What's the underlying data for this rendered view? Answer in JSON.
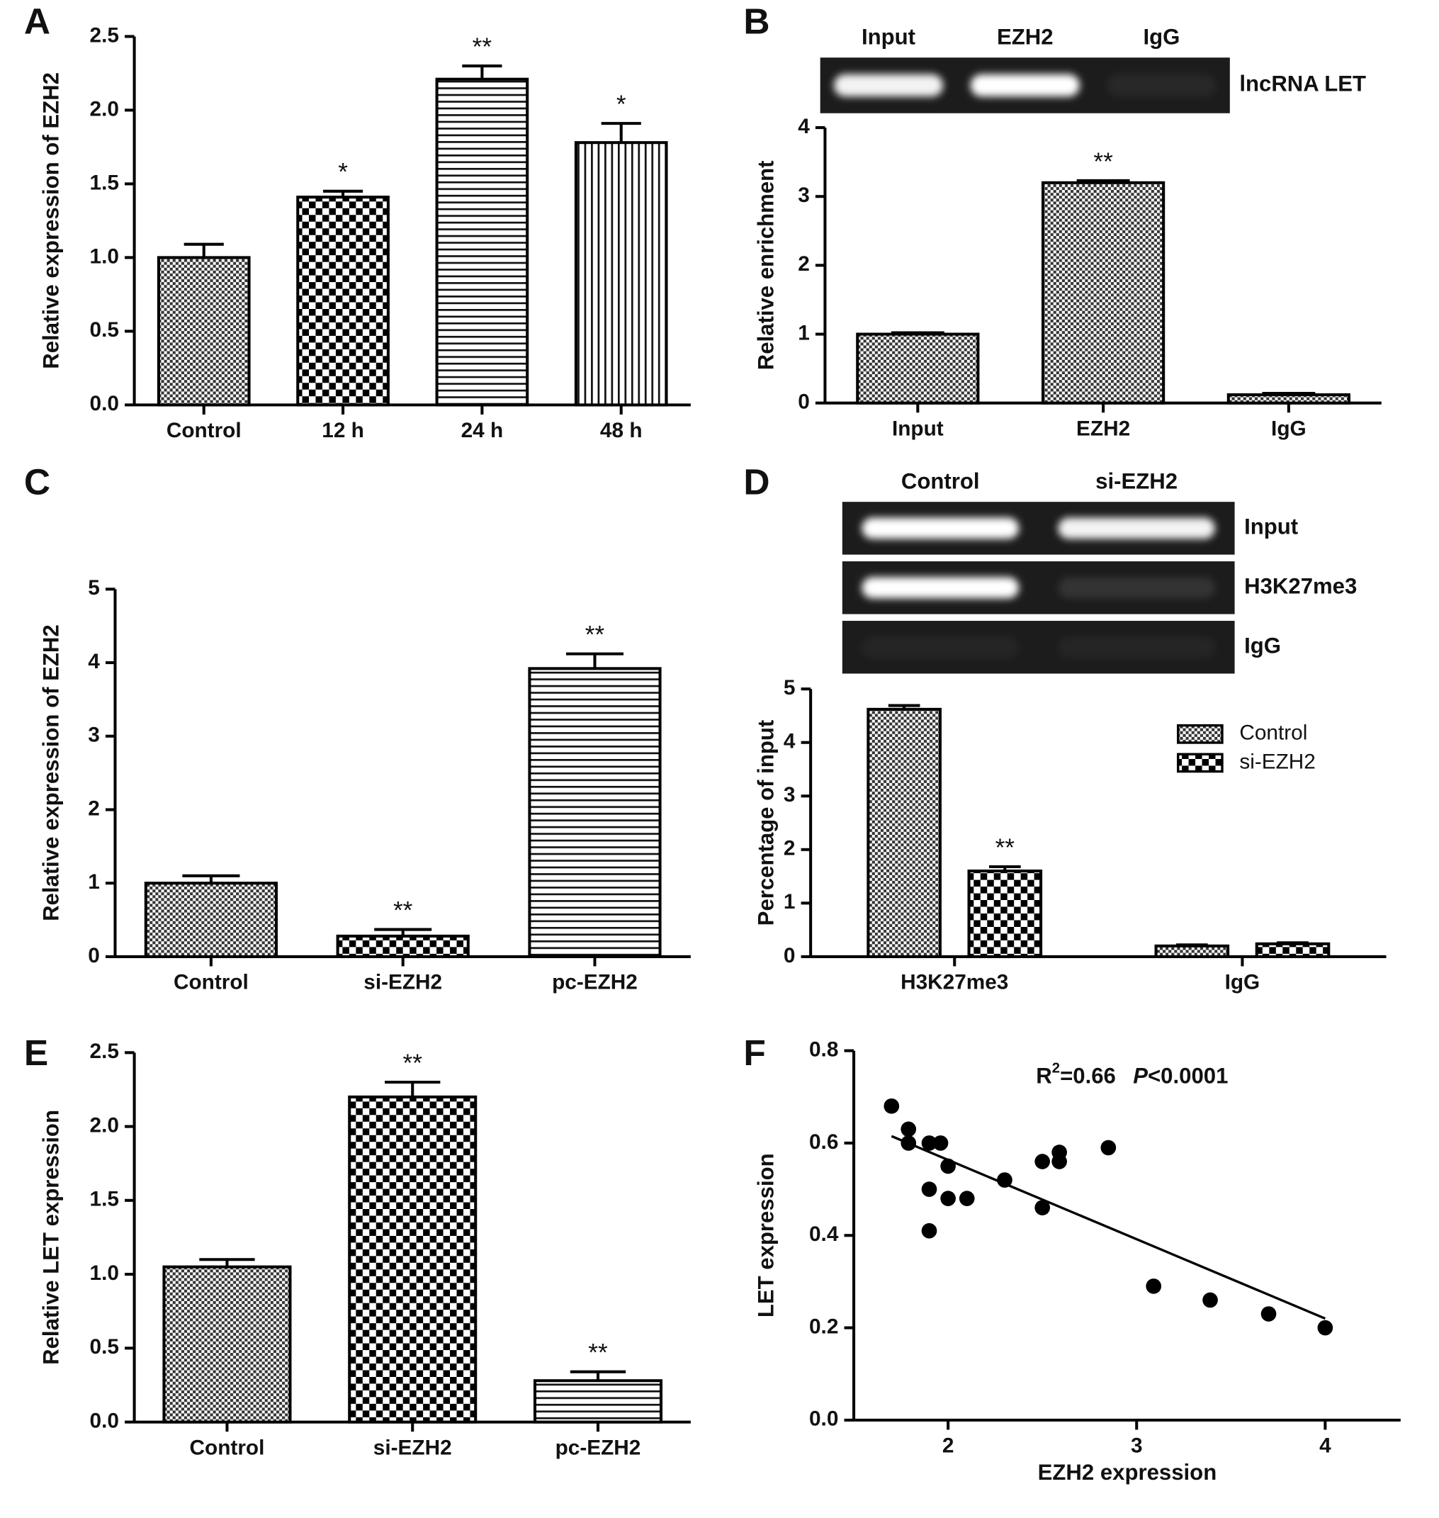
{
  "chart_data": [
    {
      "type": "bar",
      "panel": "A",
      "ylabel": "Relative expression of EZH2",
      "categories": [
        "Control",
        "12 h",
        "24 h",
        "48 h"
      ],
      "values": [
        1.0,
        1.41,
        2.21,
        1.78
      ],
      "errors": [
        0.09,
        0.04,
        0.09,
        0.13
      ],
      "annotations": [
        null,
        "*",
        "**",
        "*"
      ],
      "patterns": [
        "fine-check",
        "checker",
        "hlines",
        "vlines"
      ],
      "ylim": [
        0,
        2.5
      ],
      "yticks": [
        {
          "value": 0,
          "label": "0.0"
        },
        0.5,
        {
          "value": 1,
          "label": "1.0"
        },
        1.5,
        {
          "value": 2,
          "label": "2.0"
        },
        2.5
      ]
    },
    {
      "type": "bar",
      "panel": "B",
      "ylabel": "Relative enrichment",
      "gel": {
        "lanes": [
          "Input",
          "EZH2",
          "IgG"
        ],
        "rows": [
          {
            "label": "lncRNA LET",
            "band_intensity": [
              0.95,
              1,
              0.05
            ]
          }
        ]
      },
      "categories": [
        "Input",
        "EZH2",
        "IgG"
      ],
      "values": [
        1.0,
        3.2,
        0.12
      ],
      "errors": [
        0.02,
        0.03,
        0.02
      ],
      "annotations": [
        null,
        "**",
        null
      ],
      "patterns": [
        "fine-check",
        "fine-check",
        "fine-check"
      ],
      "ylim": [
        0,
        4
      ],
      "yticks": [
        0,
        1,
        2,
        3,
        4
      ]
    },
    {
      "type": "bar",
      "panel": "C",
      "ylabel": "Relative expression of EZH2",
      "categories": [
        "Control",
        "si-EZH2",
        "pc-EZH2"
      ],
      "values": [
        1.0,
        0.28,
        3.92
      ],
      "errors": [
        0.1,
        0.09,
        0.2
      ],
      "annotations": [
        null,
        "**",
        "**"
      ],
      "patterns": [
        "fine-check",
        "checker",
        "hlines"
      ],
      "ylim": [
        0,
        5
      ],
      "yticks": [
        0,
        1,
        2,
        3,
        4,
        5
      ]
    },
    {
      "type": "bar",
      "panel": "D",
      "ylabel": "Percentage of input",
      "gel": {
        "lanes": [
          "Control",
          "si-EZH2"
        ],
        "rows": [
          {
            "label": "Input",
            "band_intensity": [
              1,
              0.95
            ]
          },
          {
            "label": "H3K27me3",
            "band_intensity": [
              1,
              0.1
            ]
          },
          {
            "label": "IgG",
            "band_intensity": [
              0.04,
              0.04
            ]
          }
        ]
      },
      "categories": [
        "H3K27me3",
        "IgG"
      ],
      "series": [
        {
          "name": "Control",
          "pattern": "fine-check",
          "values": [
            4.62,
            0.2
          ],
          "errors": [
            0.07,
            0.02
          ],
          "annotations": [
            null,
            null
          ]
        },
        {
          "name": "si-EZH2",
          "pattern": "checker",
          "values": [
            1.6,
            0.24
          ],
          "errors": [
            0.08,
            0.02
          ],
          "annotations": [
            "**",
            null
          ]
        }
      ],
      "legend": "upper right",
      "ylim": [
        0,
        5
      ],
      "yticks": [
        0,
        1,
        2,
        3,
        4,
        5
      ]
    },
    {
      "type": "bar",
      "panel": "E",
      "ylabel": "Relative LET expression",
      "categories": [
        "Control",
        "si-EZH2",
        "pc-EZH2"
      ],
      "values": [
        1.05,
        2.2,
        0.28
      ],
      "errors": [
        0.05,
        0.1,
        0.06
      ],
      "annotations": [
        null,
        "**",
        "**"
      ],
      "patterns": [
        "fine-check",
        "checker",
        "hlines"
      ],
      "ylim": [
        0,
        2.5
      ],
      "yticks": [
        {
          "value": 0,
          "label": "0.0"
        },
        0.5,
        {
          "value": 1,
          "label": "1.0"
        },
        1.5,
        {
          "value": 2,
          "label": "2.0"
        },
        2.5
      ]
    },
    {
      "type": "scatter",
      "panel": "F",
      "xlabel": "EZH2 expression",
      "ylabel": "LET expression",
      "stat": [
        "R",
        "2",
        "=0.66",
        "P",
        "<0.0001"
      ],
      "x": [
        1.7,
        1.79,
        1.79,
        1.9,
        1.96,
        2.0,
        1.9,
        2.0,
        2.1,
        1.9,
        2.3,
        2.5,
        2.5,
        2.59,
        2.59,
        2.85,
        3.09,
        3.39,
        3.7,
        4.0
      ],
      "y": [
        0.68,
        0.63,
        0.6,
        0.6,
        0.6,
        0.55,
        0.5,
        0.48,
        0.48,
        0.41,
        0.52,
        0.56,
        0.46,
        0.58,
        0.56,
        0.59,
        0.29,
        0.26,
        0.23,
        0.2
      ],
      "fit_line": {
        "x": [
          1.7,
          4.0
        ],
        "y": [
          0.615,
          0.22
        ]
      },
      "color": "#000000",
      "xlim": [
        1.5,
        4.4
      ],
      "xticks": [
        2,
        3,
        4
      ],
      "ylim": [
        0,
        0.8
      ],
      "yticks": [
        {
          "value": 0,
          "label": "0.0"
        },
        0.2,
        0.4,
        0.6,
        0.8
      ]
    }
  ]
}
